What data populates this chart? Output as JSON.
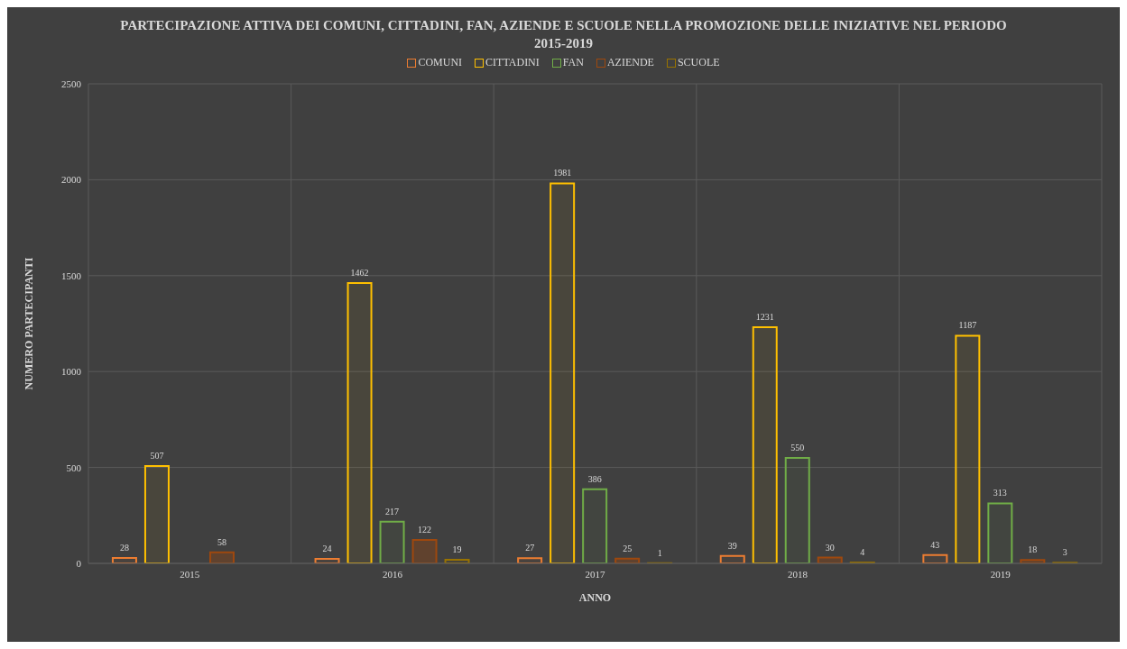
{
  "chart_data": {
    "type": "bar",
    "title": "PARTECIPAZIONE ATTIVA DEI COMUNI, CITTADINI, FAN, AZIENDE E SCUOLE NELLA PROMOZIONE DELLE INIZIATIVE NEL PERIODO 2015-2019",
    "xlabel": "ANNO",
    "ylabel": "NUMERO PARTECIPANTI",
    "categories": [
      "2015",
      "2016",
      "2017",
      "2018",
      "2019"
    ],
    "series": [
      {
        "name": "COMUNI",
        "color": "#ed7d31",
        "values": [
          28,
          24,
          27,
          39,
          43
        ]
      },
      {
        "name": "CITTADINI",
        "color": "#ffc000",
        "values": [
          507,
          1462,
          1981,
          1231,
          1187
        ]
      },
      {
        "name": "FAN",
        "color": "#70ad47",
        "values": [
          null,
          217,
          386,
          550,
          313
        ]
      },
      {
        "name": "AZIENDE",
        "color": "#9e480e",
        "values": [
          58,
          122,
          25,
          30,
          18
        ]
      },
      {
        "name": "SCUOLE",
        "color": "#997300",
        "values": [
          null,
          19,
          1,
          4,
          3
        ]
      }
    ],
    "ylim": [
      0,
      2500
    ],
    "yticks": [
      0,
      500,
      1000,
      1500,
      2000,
      2500
    ],
    "grid": true,
    "legend": "top",
    "data_labels": true
  }
}
